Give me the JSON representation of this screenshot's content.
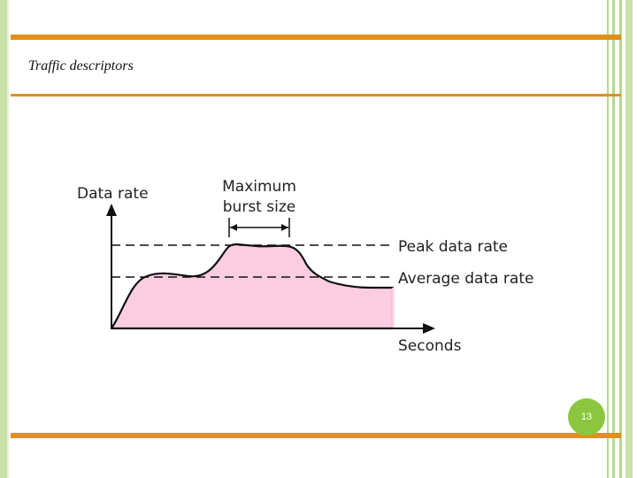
{
  "slide": {
    "title": "Traffic descriptors",
    "page_number": "13"
  },
  "diagram": {
    "y_axis_label": "Data rate",
    "x_axis_label": "Seconds",
    "burst_label_line1": "Maximum",
    "burst_label_line2": "burst size",
    "peak_label": "Peak data rate",
    "average_label": "Average data rate"
  },
  "colors": {
    "accent_bar": "#e0901c",
    "frame_green": "#c8e2a8",
    "badge_green": "#8cc63f",
    "curve_fill": "#fccde1"
  }
}
